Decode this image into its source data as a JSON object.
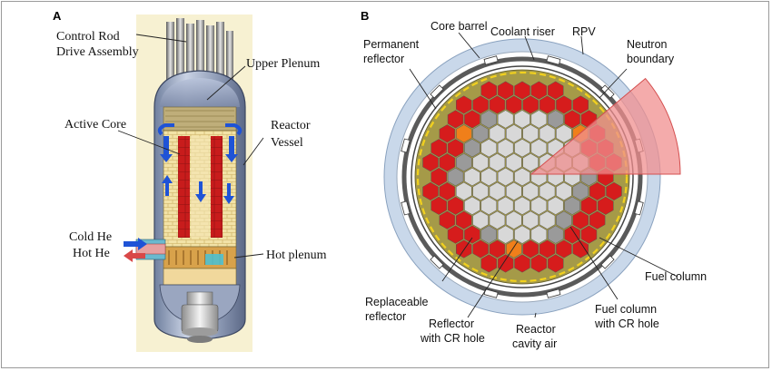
{
  "panels": {
    "a": {
      "letter": "A",
      "labels": {
        "crda_line1": "Control Rod",
        "crda_line2": "Drive Assembly",
        "upper_plenum": "Upper Plenum",
        "active_core": "Active Core",
        "reactor_line1": "Reactor",
        "reactor_line2": "Vessel",
        "cold_he": "Cold He",
        "hot_he": "Hot He",
        "hot_plenum": "Hot plenum"
      }
    },
    "b": {
      "letter": "B",
      "labels": {
        "core_barrel": "Core barrel",
        "coolant_riser": "Coolant riser",
        "rpv": "RPV",
        "permanent_line1": "Permanent",
        "permanent_line2": "reflector",
        "neutron_line1": "Neutron",
        "neutron_line2": "boundary",
        "fuel_column": "Fuel column",
        "replaceable_line1": "Replaceable",
        "replaceable_line2": "reflector",
        "refl_cr_line1": "Reflector",
        "refl_cr_line2": "with CR hole",
        "cavity_line1": "Reactor",
        "cavity_line2": "cavity air",
        "fuel_cr_line1": "Fuel column",
        "fuel_cr_line2": "with CR hole"
      }
    }
  },
  "colors": {
    "fuel": "#d61c1c",
    "fuel_cr": "#f07f1a",
    "reflector": "#d8d8d8",
    "reflector_cr": "#9a9a9a",
    "permanent_reflector": "#a59a48",
    "cavity": "#c9d8ea",
    "rpv": "#5a5a5a",
    "neutron_boundary": "#f2d11e",
    "sector": "#f08f8f"
  }
}
